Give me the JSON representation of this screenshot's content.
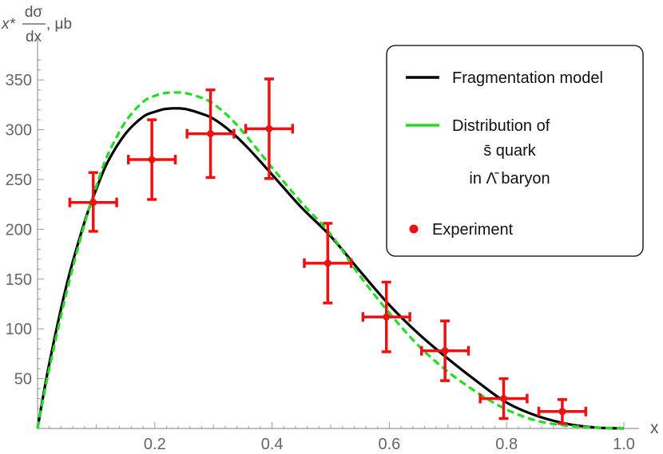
{
  "chart_data": {
    "type": "scatter",
    "title": "",
    "xlabel": "x",
    "ylabel": {
      "prefix": "x*",
      "numerator": "dσ",
      "denominator": "dx",
      "suffix": ", μb"
    },
    "xlim": [
      0,
      1.0
    ],
    "ylim": [
      0,
      375
    ],
    "x_ticks": [
      "0.2",
      "0.4",
      "0.6",
      "0.8",
      "1.0"
    ],
    "y_ticks": [
      "50",
      "100",
      "150",
      "200",
      "250",
      "300",
      "350"
    ],
    "grid": false,
    "legend_position": "top-right",
    "series": [
      {
        "name": "Fragmentation model",
        "kind": "line",
        "color": "#000000",
        "dash": "solid",
        "x": [
          0.0,
          0.02,
          0.05,
          0.08,
          0.1,
          0.12,
          0.15,
          0.18,
          0.2,
          0.22,
          0.25,
          0.28,
          0.3,
          0.33,
          0.36,
          0.4,
          0.45,
          0.5,
          0.55,
          0.6,
          0.65,
          0.7,
          0.75,
          0.8,
          0.85,
          0.9,
          0.95,
          1.0
        ],
        "y": [
          0,
          65,
          145,
          207,
          240,
          268,
          296,
          313,
          318,
          321,
          321,
          316,
          311,
          298,
          281,
          255,
          222,
          193,
          158,
          124,
          95,
          70,
          47,
          26,
          13,
          5,
          1,
          0
        ]
      },
      {
        "name": "Distribution of s̄ quark in Λ̄ baryon",
        "legend_lines": [
          "Distribution of",
          "s̄ quark",
          "in Λ̄ baryon"
        ],
        "kind": "line",
        "color": "#22dd22",
        "dash": "dashed",
        "x": [
          0.0,
          0.02,
          0.05,
          0.08,
          0.1,
          0.12,
          0.15,
          0.18,
          0.2,
          0.22,
          0.25,
          0.28,
          0.3,
          0.33,
          0.36,
          0.4,
          0.45,
          0.5,
          0.55,
          0.6,
          0.65,
          0.7,
          0.75,
          0.8,
          0.85,
          0.9,
          0.95,
          1.0
        ],
        "y": [
          0,
          60,
          138,
          205,
          243,
          275,
          308,
          328,
          334,
          337,
          337,
          332,
          326,
          311,
          291,
          262,
          227,
          195,
          153,
          116,
          83,
          57,
          36,
          19,
          8,
          3,
          1,
          0
        ]
      },
      {
        "name": "Experiment",
        "kind": "points",
        "color": "#ee1111",
        "points": [
          {
            "x": 0.095,
            "y": 227,
            "x_err": 0.04,
            "y_low": 198,
            "y_high": 257
          },
          {
            "x": 0.195,
            "y": 270,
            "x_err": 0.04,
            "y_low": 230,
            "y_high": 310
          },
          {
            "x": 0.295,
            "y": 296,
            "x_err": 0.04,
            "y_low": 252,
            "y_high": 340
          },
          {
            "x": 0.395,
            "y": 301,
            "x_err": 0.04,
            "y_low": 251,
            "y_high": 351
          },
          {
            "x": 0.495,
            "y": 166,
            "x_err": 0.04,
            "y_low": 126,
            "y_high": 206
          },
          {
            "x": 0.595,
            "y": 112,
            "x_err": 0.04,
            "y_low": 77,
            "y_high": 147
          },
          {
            "x": 0.695,
            "y": 78,
            "x_err": 0.04,
            "y_low": 48,
            "y_high": 108
          },
          {
            "x": 0.795,
            "y": 30,
            "x_err": 0.04,
            "y_low": 10,
            "y_high": 50
          },
          {
            "x": 0.895,
            "y": 17,
            "x_err": 0.04,
            "y_low": 5,
            "y_high": 29
          }
        ]
      }
    ]
  }
}
